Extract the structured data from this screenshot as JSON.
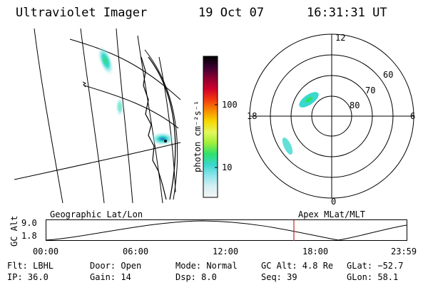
{
  "header": {
    "title": "Ultraviolet Imager",
    "date": "19 Oct 07",
    "time": "16:31:31 UT"
  },
  "colorbar": {
    "label": "photon cm⁻²s⁻¹",
    "ticks": [
      "100",
      "10"
    ],
    "colors": [
      "#000000",
      "#3a0030",
      "#8a0030",
      "#d0002a",
      "#f23a10",
      "#f78c00",
      "#f6d800",
      "#e4f75a",
      "#9ff03a",
      "#2fe06e",
      "#3ad8cf",
      "#8fe5ec",
      "#d6eff3",
      "#f5f5f5"
    ]
  },
  "polar": {
    "labels": {
      "top": "12",
      "bottom": "0",
      "left": "18",
      "right": "6"
    },
    "rings": [
      "60",
      "70",
      "80"
    ]
  },
  "timeline": {
    "left_title": "Geographic Lat/Lon",
    "right_title": "Apex MLat/MLT",
    "yaxis_label": "GC Alt",
    "y_ticks": [
      "9.0",
      "1.8"
    ],
    "x_ticks": [
      "00:00",
      "06:00",
      "12:00",
      "18:00",
      "23:59"
    ],
    "current_marker_color": "#cc2222"
  },
  "info": {
    "flt": "Flt: LBHL",
    "ip": "IP: 36.0",
    "door": "Door: Open",
    "gain": "Gain: 14",
    "mode": "Mode: Normal",
    "dsp": "Dsp:     8.0",
    "gcalt": "GC Alt: 4.8 Re",
    "seq": "Seq: 39",
    "glat": "GLat: −52.7",
    "glon": "GLon:  58.1"
  }
}
